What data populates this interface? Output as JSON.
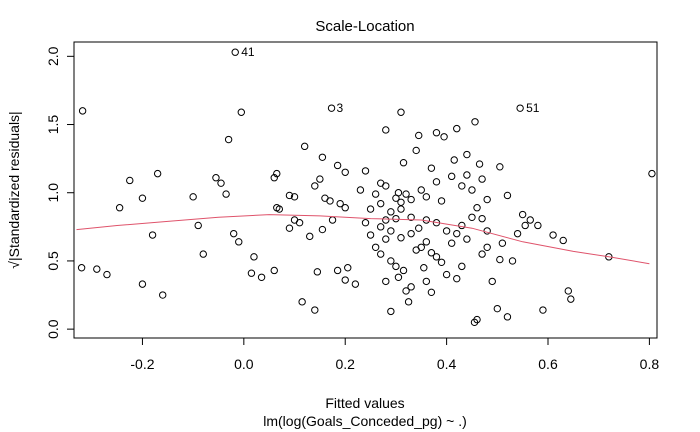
{
  "chart_data": {
    "type": "scatter",
    "title": "Scale-Location",
    "xlabel": "Fitted values",
    "xlabel2": "lm(log(Goals_Conceded_pg) ~ .)",
    "ylabel": "√|Standardized residuals|",
    "xlim": [
      -0.335,
      0.815
    ],
    "ylim": [
      -0.065,
      2.105
    ],
    "x_ticks": [
      -0.2,
      0.0,
      0.2,
      0.4,
      0.6,
      0.8
    ],
    "x_tick_labels": [
      "-0.2",
      "0.0",
      "0.2",
      "0.4",
      "0.6",
      "0.8"
    ],
    "y_ticks": [
      0.0,
      0.5,
      1.0,
      1.5,
      2.0
    ],
    "y_tick_labels": [
      "0.0",
      "0.5",
      "1.0",
      "1.5",
      "2.0"
    ],
    "grid": false,
    "colors": {
      "points": "#000000",
      "smooth": "#df536b",
      "axis": "#000000"
    },
    "annotations": [
      {
        "label": "41",
        "x": -0.017,
        "y": 2.03
      },
      {
        "label": "3",
        "x": 0.173,
        "y": 1.62
      },
      {
        "label": "51",
        "x": 0.545,
        "y": 1.62
      }
    ],
    "smooth_line": [
      [
        -0.33,
        0.73
      ],
      [
        -0.25,
        0.76
      ],
      [
        -0.15,
        0.79
      ],
      [
        -0.05,
        0.82
      ],
      [
        0.05,
        0.84
      ],
      [
        0.15,
        0.83
      ],
      [
        0.25,
        0.81
      ],
      [
        0.35,
        0.8
      ],
      [
        0.45,
        0.74
      ],
      [
        0.55,
        0.64
      ],
      [
        0.65,
        0.57
      ],
      [
        0.72,
        0.53
      ],
      [
        0.8,
        0.48
      ]
    ],
    "points": [
      [
        -0.017,
        2.03
      ],
      [
        0.173,
        1.62
      ],
      [
        0.545,
        1.62
      ],
      [
        -0.318,
        1.6
      ],
      [
        -0.005,
        1.59
      ],
      [
        0.31,
        1.59
      ],
      [
        0.456,
        1.52
      ],
      [
        -0.03,
        1.39
      ],
      [
        0.12,
        1.34
      ],
      [
        0.28,
        1.46
      ],
      [
        0.345,
        1.42
      ],
      [
        0.38,
        1.44
      ],
      [
        0.395,
        1.41
      ],
      [
        0.42,
        1.47
      ],
      [
        0.44,
        1.28
      ],
      [
        0.465,
        1.21
      ],
      [
        0.505,
        1.19
      ],
      [
        0.155,
        1.26
      ],
      [
        0.185,
        1.2
      ],
      [
        0.2,
        1.15
      ],
      [
        0.24,
        1.16
      ],
      [
        0.315,
        1.22
      ],
      [
        0.34,
        1.31
      ],
      [
        0.37,
        1.18
      ],
      [
        0.415,
        1.24
      ],
      [
        0.44,
        1.13
      ],
      [
        0.47,
        1.1
      ],
      [
        -0.225,
        1.09
      ],
      [
        -0.17,
        1.14
      ],
      [
        -0.1,
        0.97
      ],
      [
        -0.2,
        0.96
      ],
      [
        -0.245,
        0.89
      ],
      [
        -0.055,
        1.11
      ],
      [
        -0.045,
        1.07
      ],
      [
        -0.035,
        0.99
      ],
      [
        0.065,
        1.14
      ],
      [
        0.06,
        1.11
      ],
      [
        0.09,
        0.98
      ],
      [
        0.14,
        1.05
      ],
      [
        0.15,
        1.1
      ],
      [
        0.16,
        0.96
      ],
      [
        0.17,
        0.94
      ],
      [
        0.19,
        0.92
      ],
      [
        0.2,
        0.89
      ],
      [
        0.26,
        0.99
      ],
      [
        0.27,
        1.07
      ],
      [
        0.28,
        1.05
      ],
      [
        0.3,
        0.96
      ],
      [
        0.305,
        1.0
      ],
      [
        0.31,
        0.93
      ],
      [
        0.32,
        0.99
      ],
      [
        0.33,
        0.95
      ],
      [
        0.35,
        1.02
      ],
      [
        0.36,
        0.97
      ],
      [
        0.38,
        1.08
      ],
      [
        0.39,
        0.94
      ],
      [
        0.41,
        1.12
      ],
      [
        0.43,
        1.05
      ],
      [
        0.45,
        1.02
      ],
      [
        0.46,
        0.89
      ],
      [
        0.48,
        0.95
      ],
      [
        0.52,
        0.98
      ],
      [
        0.55,
        0.84
      ],
      [
        -0.32,
        0.45
      ],
      [
        -0.29,
        0.44
      ],
      [
        -0.27,
        0.4
      ],
      [
        -0.2,
        0.33
      ],
      [
        -0.18,
        0.69
      ],
      [
        -0.16,
        0.25
      ],
      [
        -0.08,
        0.55
      ],
      [
        -0.09,
        0.76
      ],
      [
        -0.02,
        0.7
      ],
      [
        -0.01,
        0.64
      ],
      [
        0.02,
        0.53
      ],
      [
        0.015,
        0.41
      ],
      [
        0.035,
        0.38
      ],
      [
        0.06,
        0.43
      ],
      [
        0.065,
        0.89
      ],
      [
        0.07,
        0.88
      ],
      [
        0.09,
        0.74
      ],
      [
        0.1,
        0.8
      ],
      [
        0.115,
        0.2
      ],
      [
        0.14,
        0.14
      ],
      [
        0.145,
        0.42
      ],
      [
        0.155,
        0.73
      ],
      [
        0.175,
        0.8
      ],
      [
        0.185,
        0.43
      ],
      [
        0.2,
        0.36
      ],
      [
        0.205,
        0.45
      ],
      [
        0.22,
        0.33
      ],
      [
        0.24,
        0.78
      ],
      [
        0.25,
        0.69
      ],
      [
        0.26,
        0.6
      ],
      [
        0.27,
        0.55
      ],
      [
        0.28,
        0.66
      ],
      [
        0.29,
        0.5
      ],
      [
        0.3,
        0.46
      ],
      [
        0.305,
        0.38
      ],
      [
        0.315,
        0.43
      ],
      [
        0.32,
        0.28
      ],
      [
        0.325,
        0.2
      ],
      [
        0.33,
        0.31
      ],
      [
        0.34,
        0.58
      ],
      [
        0.35,
        0.6
      ],
      [
        0.355,
        0.45
      ],
      [
        0.36,
        0.35
      ],
      [
        0.37,
        0.27
      ],
      [
        0.38,
        0.53
      ],
      [
        0.39,
        0.49
      ],
      [
        0.4,
        0.4
      ],
      [
        0.41,
        0.63
      ],
      [
        0.42,
        0.37
      ],
      [
        0.43,
        0.46
      ],
      [
        0.44,
        0.66
      ],
      [
        0.45,
        0.82
      ],
      [
        0.455,
        0.05
      ],
      [
        0.46,
        0.07
      ],
      [
        0.47,
        0.55
      ],
      [
        0.48,
        0.6
      ],
      [
        0.49,
        0.35
      ],
      [
        0.5,
        0.15
      ],
      [
        0.505,
        0.51
      ],
      [
        0.51,
        0.63
      ],
      [
        0.52,
        0.09
      ],
      [
        0.53,
        0.5
      ],
      [
        0.54,
        0.7
      ],
      [
        0.555,
        0.76
      ],
      [
        0.565,
        0.8
      ],
      [
        0.58,
        0.76
      ],
      [
        0.59,
        0.14
      ],
      [
        0.61,
        0.69
      ],
      [
        0.63,
        0.65
      ],
      [
        0.64,
        0.28
      ],
      [
        0.645,
        0.22
      ],
      [
        0.72,
        0.53
      ],
      [
        0.805,
        1.14
      ],
      [
        0.27,
        0.92
      ],
      [
        0.29,
        0.86
      ],
      [
        0.31,
        0.88
      ],
      [
        0.33,
        0.82
      ],
      [
        0.345,
        0.74
      ],
      [
        0.36,
        0.8
      ],
      [
        0.38,
        0.78
      ],
      [
        0.4,
        0.72
      ],
      [
        0.42,
        0.7
      ],
      [
        0.43,
        0.76
      ],
      [
        0.47,
        0.81
      ],
      [
        0.27,
        0.75
      ],
      [
        0.29,
        0.72
      ],
      [
        0.31,
        0.67
      ],
      [
        0.33,
        0.7
      ],
      [
        0.28,
        0.35
      ],
      [
        0.29,
        0.13
      ],
      [
        0.36,
        0.64
      ],
      [
        0.37,
        0.56
      ],
      [
        0.1,
        0.97
      ],
      [
        0.11,
        0.78
      ],
      [
        0.13,
        0.68
      ],
      [
        0.23,
        1.02
      ],
      [
        0.25,
        0.88
      ],
      [
        0.28,
        0.8
      ],
      [
        0.3,
        0.81
      ],
      [
        0.48,
        0.72
      ]
    ]
  }
}
